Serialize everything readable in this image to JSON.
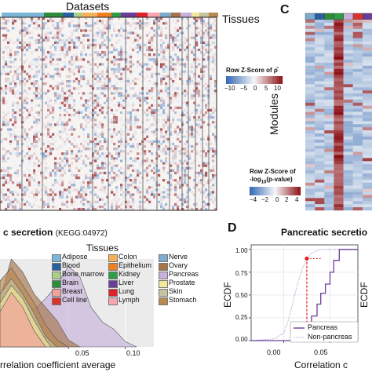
{
  "figure": {
    "panel_a": {
      "datasets_label": "Datasets",
      "tissues_label": "Tissues",
      "colorbar_title": "Row Z-Score of ρ̂",
      "colorbar_ticks": [
        "−10",
        "−5",
        "0",
        "5",
        "10"
      ]
    },
    "panel_c": {
      "letter": "C",
      "ylabel": "Modules",
      "colorbar_title_line1": "Row Z-Score of",
      "colorbar_title_line2": "-log",
      "colorbar_title_sub": "10",
      "colorbar_title_line2b": "(p-value)",
      "colorbar_ticks": [
        "−4",
        "−2",
        "0",
        "2",
        "4"
      ]
    },
    "panel_b": {
      "title_main": "c secretion",
      "title_sub": "(KEGG:04972)",
      "legend_title": "Tissues",
      "xlabel": "rrelation coefficient average",
      "xticks": [
        "0.05",
        "0.10"
      ]
    },
    "panel_d": {
      "letter": "D",
      "title": "Pancreatic secretio",
      "ylabel": "ECDF",
      "ylabel_right": "ECDF",
      "xlabel": "Correlation c",
      "xticks": [
        "0.00",
        "0.05"
      ],
      "yticks": [
        "0.00",
        "0.25",
        "0.50",
        "0.75",
        "1.00"
      ]
    }
  },
  "tissues": [
    {
      "name": "Adipose",
      "color": "#7ab6d6"
    },
    {
      "name": "Blood",
      "color": "#2c5fa0"
    },
    {
      "name": "Bone marrow",
      "color": "#a8d08a"
    },
    {
      "name": "Brain",
      "color": "#2e8b3a"
    },
    {
      "name": "Breast",
      "color": "#f2a29a"
    },
    {
      "name": "Cell line",
      "color": "#d9342b"
    },
    {
      "name": "Colon",
      "color": "#f5b15a"
    },
    {
      "name": "Epithelium",
      "color": "#f07f22"
    },
    {
      "name": "Kidney",
      "color": "#2f9d47"
    },
    {
      "name": "Liver",
      "color": "#6a3d9a"
    },
    {
      "name": "Lung",
      "color": "#e0202a"
    },
    {
      "name": "Lymph",
      "color": "#f5a6b0"
    },
    {
      "name": "Nerve",
      "color": "#7dabd0"
    },
    {
      "name": "Ovary",
      "color": "#a8754a"
    },
    {
      "name": "Pancreas",
      "color": "#c8b2dc"
    },
    {
      "name": "Prostate",
      "color": "#f3e89a"
    },
    {
      "name": "Skin",
      "color": "#c5c3a0"
    },
    {
      "name": "Stomach",
      "color": "#b88a52"
    }
  ],
  "colors": {
    "heat_low": "#2f64b0",
    "heat_mid": "#f4f6f8",
    "heat_high": "#8b0d12",
    "pancreas_line": "#6a3d9a",
    "non_pancreas_line": "#b29bd6",
    "marker_red": "#e41a1c"
  },
  "chart_data": [
    {
      "type": "heatmap",
      "panel": "A",
      "title": "Datasets",
      "x_annotation": "Tissues",
      "colorbar": {
        "label": "Row Z-Score of ρ̂",
        "range": [
          -10,
          10
        ],
        "ticks": [
          -10,
          -5,
          0,
          5,
          10
        ]
      }
    },
    {
      "type": "heatmap",
      "panel": "C",
      "ylabel": "Modules",
      "colorbar": {
        "label": "Row Z-Score of -log10(p-value)",
        "range": [
          -4,
          4
        ],
        "ticks": [
          -4,
          -2,
          0,
          2,
          4
        ]
      }
    },
    {
      "type": "area",
      "panel": "B",
      "title": "c secretion (KEGG:04972)",
      "xlabel": "rrelation coefficient average",
      "xlim": [
        -0.01,
        0.125
      ],
      "xticks": [
        0.05,
        0.1
      ],
      "series": [
        {
          "name": "Pancreas",
          "x": [
            -0.01,
            0.0,
            0.01,
            0.02,
            0.03,
            0.04,
            0.05,
            0.06,
            0.07,
            0.08,
            0.09,
            0.1,
            0.11
          ],
          "y": [
            0.3,
            0.55,
            0.5,
            0.42,
            0.55,
            0.7,
            0.92,
            0.8,
            0.45,
            0.28,
            0.2,
            0.06,
            0.0
          ]
        },
        {
          "name": "Ovary",
          "x": [
            -0.01,
            0.0,
            0.01,
            0.02,
            0.03,
            0.04,
            0.05,
            0.06
          ],
          "y": [
            0.55,
            1.0,
            0.85,
            0.6,
            0.45,
            0.3,
            0.08,
            0.0
          ]
        },
        {
          "name": "Stomach",
          "x": [
            -0.01,
            0.0,
            0.01,
            0.02,
            0.03,
            0.04,
            0.05
          ],
          "y": [
            0.75,
            0.9,
            0.7,
            0.5,
            0.25,
            0.08,
            0.0
          ]
        },
        {
          "name": "Skin",
          "x": [
            -0.01,
            0.0,
            0.01,
            0.02,
            0.03,
            0.04
          ],
          "y": [
            0.6,
            0.78,
            0.6,
            0.38,
            0.12,
            0.0
          ]
        },
        {
          "name": "Prostate",
          "x": [
            -0.01,
            0.0,
            0.01,
            0.02,
            0.03,
            0.035
          ],
          "y": [
            0.5,
            0.7,
            0.55,
            0.3,
            0.08,
            0.0
          ]
        },
        {
          "name": "Breast",
          "x": [
            -0.01,
            0.0,
            0.01,
            0.02,
            0.03
          ],
          "y": [
            0.4,
            0.62,
            0.45,
            0.18,
            0.0
          ]
        }
      ]
    },
    {
      "type": "line",
      "panel": "D",
      "title": "Pancreatic secretio",
      "xlabel": "Correlation c",
      "ylabel": "ECDF",
      "xlim": [
        -0.035,
        0.08
      ],
      "ylim": [
        0,
        1.05
      ],
      "xticks": [
        0.0,
        0.05
      ],
      "yticks": [
        0.0,
        0.25,
        0.5,
        0.75,
        1.0
      ],
      "legend": "bottom-right",
      "series": [
        {
          "name": "Pancreas",
          "style": "step",
          "x": [
            -0.035,
            0.005,
            0.017,
            0.025,
            0.03,
            0.036,
            0.04,
            0.045,
            0.05,
            0.054,
            0.06,
            0.08
          ],
          "y": [
            0.0,
            0.0,
            0.07,
            0.15,
            0.27,
            0.4,
            0.52,
            0.62,
            0.75,
            0.88,
            1.0,
            1.0
          ]
        },
        {
          "name": "Non-pancreas",
          "style": "dotted",
          "x": [
            -0.035,
            -0.01,
            0.0,
            0.005,
            0.01,
            0.015,
            0.02,
            0.025,
            0.03,
            0.04,
            0.08
          ],
          "y": [
            0.0,
            0.02,
            0.08,
            0.22,
            0.42,
            0.62,
            0.78,
            0.9,
            0.96,
            1.0,
            1.0
          ]
        }
      ],
      "annotation": {
        "x": 0.025,
        "y_low": 0.15,
        "y_high": 0.9
      }
    }
  ]
}
